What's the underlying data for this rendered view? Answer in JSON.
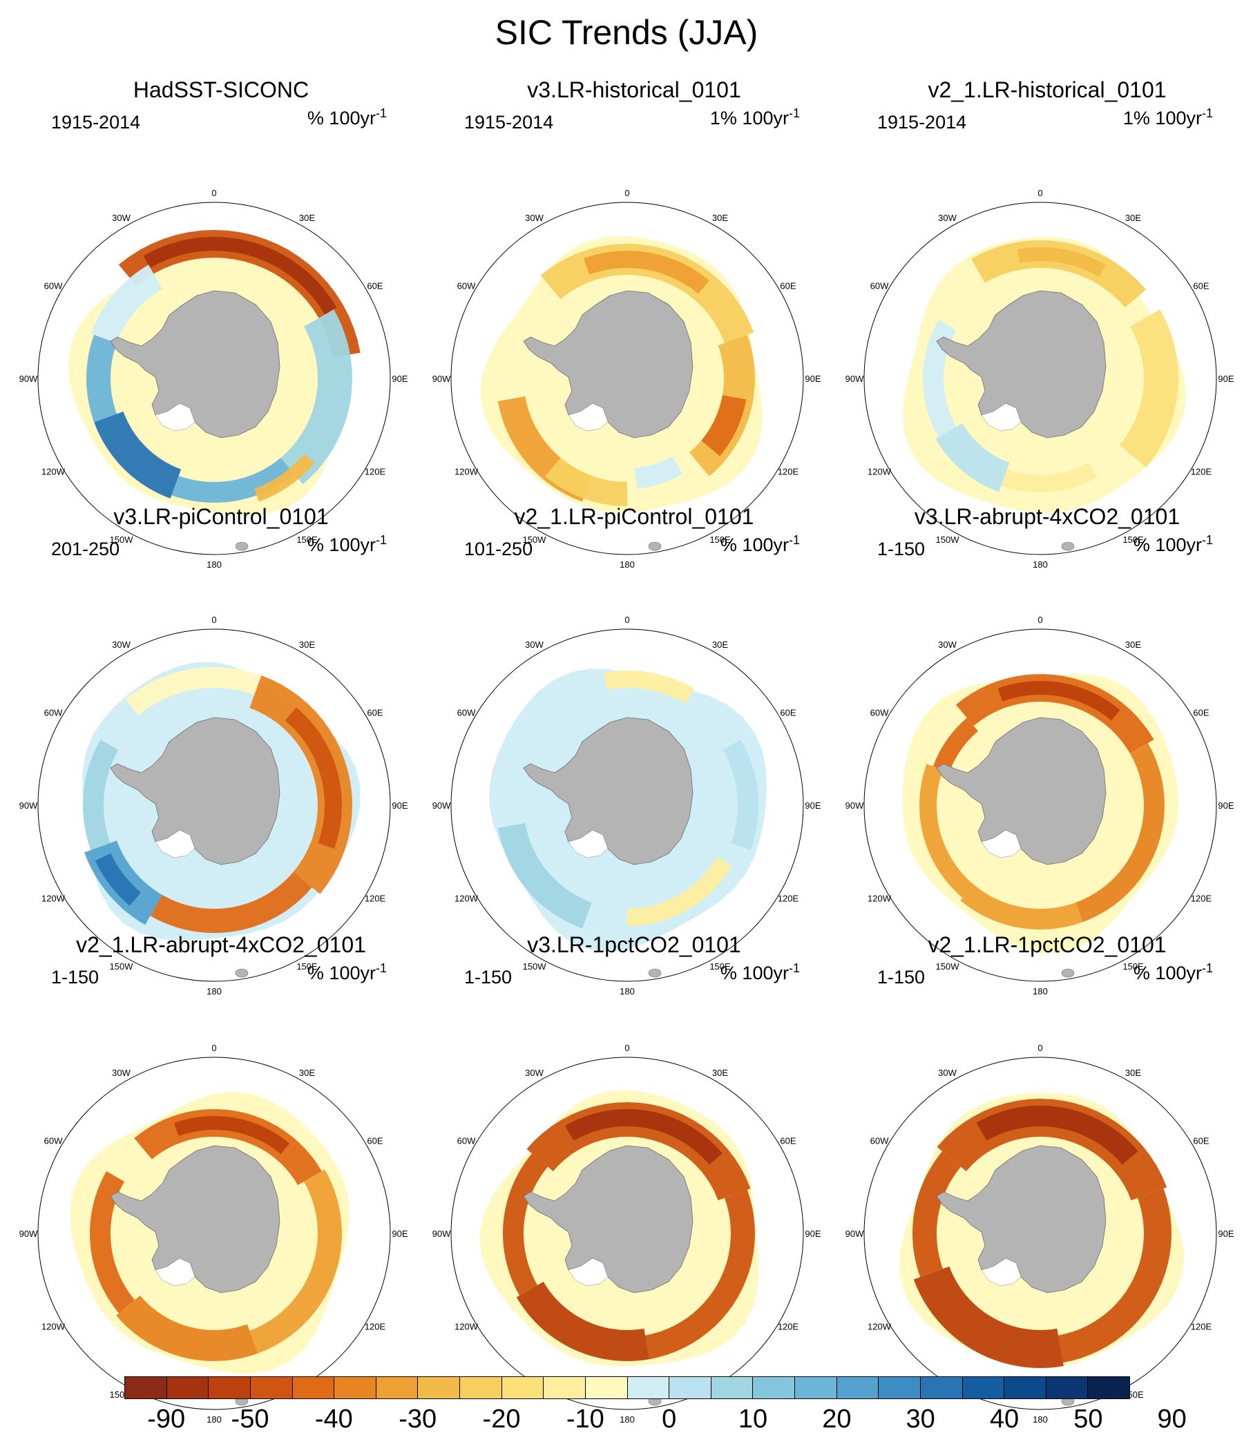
{
  "figure_title": "SIC Trends (JJA)",
  "map_labels": {
    "longitudes": [
      "0",
      "30E",
      "60E",
      "90E",
      "120E",
      "150E",
      "180",
      "150W",
      "120W",
      "90W",
      "60W",
      "30W"
    ]
  },
  "panels": [
    {
      "title": "HadSST-SICONC",
      "period": "1915-2014",
      "units": "% 100yr",
      "units_sup": "-1",
      "pattern": "obs"
    },
    {
      "title": "v3.LR-historical_0101",
      "period": "1915-2014",
      "units": "1% 100yr",
      "units_sup": "-1",
      "pattern": "hist3"
    },
    {
      "title": "v2_1.LR-historical_0101",
      "period": "1915-2014",
      "units": "1% 100yr",
      "units_sup": "-1",
      "pattern": "hist2"
    },
    {
      "title": "v3.LR-piControl_0101",
      "period": "201-250",
      "units": "% 100yr",
      "units_sup": "-1",
      "pattern": "pic3"
    },
    {
      "title": "v2_1.LR-piControl_0101",
      "period": "101-250",
      "units": "% 100yr",
      "units_sup": "-1",
      "pattern": "pic2"
    },
    {
      "title": "v3.LR-abrupt-4xCO2_0101",
      "period": "1-150",
      "units": "% 100yr",
      "units_sup": "-1",
      "pattern": "abr3"
    },
    {
      "title": "v2_1.LR-abrupt-4xCO2_0101",
      "period": "1-150",
      "units": "% 100yr",
      "units_sup": "-1",
      "pattern": "abr2"
    },
    {
      "title": "v3.LR-1pctCO2_0101",
      "period": "1-150",
      "units": "% 100yr",
      "units_sup": "-1",
      "pattern": "pct3"
    },
    {
      "title": "v2_1.LR-1pctCO2_0101",
      "period": "1-150",
      "units": "% 100yr",
      "units_sup": "-1",
      "pattern": "pct2"
    }
  ],
  "colorbar": {
    "colors": [
      "#8b2a16",
      "#a6330f",
      "#bd410c",
      "#cf5510",
      "#df6b17",
      "#e88422",
      "#eea033",
      "#f2ba48",
      "#f7cf5e",
      "#fbe07a",
      "#feee9e",
      "#fff8bf",
      "#d1eef7",
      "#b9e2ee",
      "#a0d5e2",
      "#85c6dd",
      "#6bb5d8",
      "#54a2cf",
      "#3e8cc4",
      "#2874b4",
      "#155da3",
      "#0d4a8c",
      "#0a3672",
      "#08234f"
    ],
    "labels": [
      "-90",
      "-50",
      "-40",
      "-30",
      "-20",
      "-10",
      "0",
      "10",
      "20",
      "30",
      "40",
      "50",
      "90"
    ]
  }
}
